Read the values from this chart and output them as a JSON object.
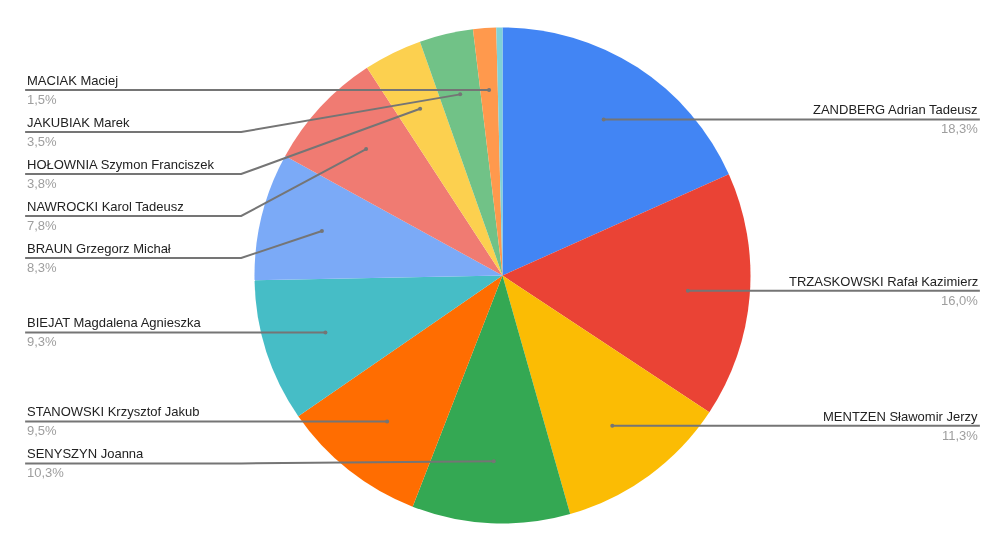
{
  "chart_data": {
    "type": "pie",
    "categories": [
      "ZANDBERG Adrian Tadeusz",
      "TRZASKOWSKI Rafał Kazimierz",
      "MENTZEN Sławomir Jerzy",
      "SENYSZYN Joanna",
      "STANOWSKI Krzysztof Jakub",
      "BIEJAT Magdalena Agnieszka",
      "BRAUN Grzegorz Michał",
      "NAWROCKI Karol Tadeusz",
      "HOŁOWNIA Szymon Franciszek",
      "JAKUBIAK Marek",
      "MACIAK Maciej",
      null
    ],
    "values": [
      18.3,
      16.0,
      11.3,
      10.3,
      9.5,
      9.3,
      8.3,
      7.8,
      3.8,
      3.5,
      1.5,
      0.4
    ],
    "colors": [
      "#4285f4",
      "#ea4335",
      "#fbbc04",
      "#34a853",
      "#ff6d01",
      "#46bdc6",
      "#7baaf7",
      "#f07b72",
      "#fcd04f",
      "#71c287",
      "#ff994d",
      "#7ed1d7"
    ],
    "value_labels": [
      "18,3%",
      "16,0%",
      "11,3%",
      "10,3%",
      "9,5%",
      "9,3%",
      "8,3%",
      "7,8%",
      "3,8%",
      "3,5%",
      "1,5%",
      null
    ]
  }
}
